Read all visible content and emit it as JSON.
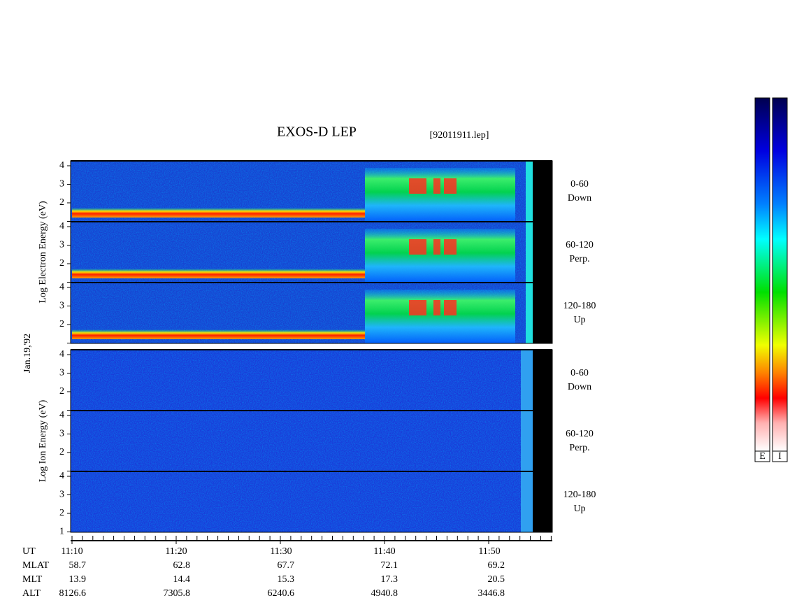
{
  "title": "EXOS-D LEP",
  "file": "[92011911.lep]",
  "date": "Jan.19,'92",
  "electron": {
    "axis_label": "Log  Electron  Energy (eV)",
    "panels": [
      {
        "yticks": [
          "4",
          "3",
          "2"
        ],
        "angle": "0-60",
        "direction": "Down"
      },
      {
        "yticks": [
          "4",
          "3",
          "2"
        ],
        "angle": "60-120",
        "direction": "Perp."
      },
      {
        "yticks": [
          "4",
          "3",
          "2"
        ],
        "angle": "120-180",
        "direction": "Up"
      }
    ]
  },
  "ion": {
    "axis_label": "Log  Ion  Energy (eV)",
    "panels": [
      {
        "yticks": [
          "4",
          "3",
          "2"
        ],
        "angle": "0-60",
        "direction": "Down"
      },
      {
        "yticks": [
          "4",
          "3",
          "2"
        ],
        "angle": "60-120",
        "direction": "Perp."
      },
      {
        "yticks": [
          "4",
          "3",
          "2",
          "1"
        ],
        "angle": "120-180",
        "direction": "Up"
      }
    ]
  },
  "ephemeris": {
    "rows": [
      {
        "label": "UT",
        "values": [
          "11:10",
          "11:20",
          "11:30",
          "11:40",
          "11:50"
        ]
      },
      {
        "label": "MLAT",
        "values": [
          "58.7",
          "62.8",
          "67.7",
          "72.1",
          "69.2"
        ]
      },
      {
        "label": "MLT",
        "values": [
          "13.9",
          "14.4",
          "15.3",
          "17.3",
          "20.5"
        ]
      },
      {
        "label": "ALT",
        "values": [
          "8126.6",
          "7305.8",
          "6240.6",
          "4940.8",
          "3446.8"
        ]
      }
    ]
  },
  "colorbars": [
    "E",
    "I"
  ]
}
